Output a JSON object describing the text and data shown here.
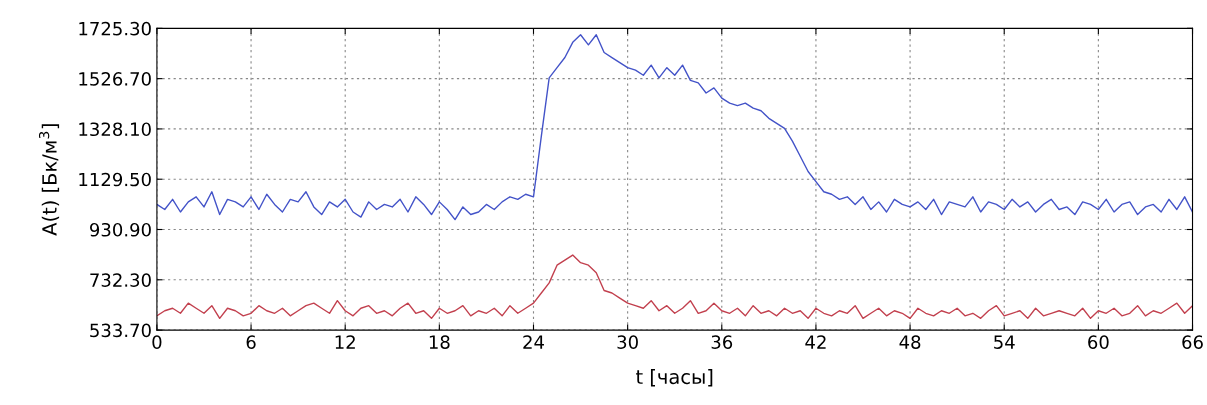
{
  "chart_data": {
    "type": "line",
    "xlabel": "t [часы]",
    "ylabel": "A(t) [Бк/м$^{3}$]",
    "x": [
      0,
      0.5,
      1,
      1.5,
      2,
      2.5,
      3,
      3.5,
      4,
      4.5,
      5,
      5.5,
      6,
      6.5,
      7,
      7.5,
      8,
      8.5,
      9,
      9.5,
      10,
      10.5,
      11,
      11.5,
      12,
      12.5,
      13,
      13.5,
      14,
      14.5,
      15,
      15.5,
      16,
      16.5,
      17,
      17.5,
      18,
      18.5,
      19,
      19.5,
      20,
      20.5,
      21,
      21.5,
      22,
      22.5,
      23,
      23.5,
      24,
      24.5,
      25,
      25.5,
      26,
      26.5,
      27,
      27.5,
      28,
      28.5,
      29,
      29.5,
      30,
      30.5,
      31,
      31.5,
      32,
      32.5,
      33,
      33.5,
      34,
      34.5,
      35,
      35.5,
      36,
      36.5,
      37,
      37.5,
      38,
      38.5,
      39,
      39.5,
      40,
      40.5,
      41,
      41.5,
      42,
      42.5,
      43,
      43.5,
      44,
      44.5,
      45,
      45.5,
      46,
      46.5,
      47,
      47.5,
      48,
      48.5,
      49,
      49.5,
      50,
      50.5,
      51,
      51.5,
      52,
      52.5,
      53,
      53.5,
      54,
      54.5,
      55,
      55.5,
      56,
      56.5,
      57,
      57.5,
      58,
      58.5,
      59,
      59.5,
      60,
      60.5,
      61,
      61.5,
      62,
      62.5,
      63,
      63.5,
      64,
      64.5,
      65,
      65.5,
      66
    ],
    "series": [
      {
        "color": "#4353c8",
        "values": [
          1030,
          1010,
          1050,
          1000,
          1040,
          1060,
          1020,
          1080,
          990,
          1050,
          1040,
          1020,
          1060,
          1010,
          1070,
          1030,
          1000,
          1050,
          1040,
          1080,
          1020,
          990,
          1040,
          1020,
          1050,
          1000,
          980,
          1040,
          1010,
          1030,
          1020,
          1050,
          1000,
          1060,
          1030,
          990,
          1040,
          1010,
          970,
          1020,
          990,
          1000,
          1030,
          1010,
          1040,
          1060,
          1050,
          1070,
          1060,
          1300,
          1530,
          1570,
          1610,
          1670,
          1700,
          1660,
          1700,
          1630,
          1610,
          1590,
          1570,
          1560,
          1540,
          1580,
          1530,
          1570,
          1540,
          1580,
          1520,
          1510,
          1470,
          1490,
          1450,
          1430,
          1420,
          1430,
          1410,
          1400,
          1370,
          1350,
          1330,
          1280,
          1220,
          1160,
          1120,
          1080,
          1070,
          1050,
          1060,
          1030,
          1060,
          1010,
          1040,
          1000,
          1050,
          1030,
          1020,
          1040,
          1010,
          1050,
          990,
          1040,
          1030,
          1020,
          1060,
          1000,
          1040,
          1030,
          1010,
          1050,
          1020,
          1040,
          1000,
          1030,
          1050,
          1010,
          1020,
          990,
          1040,
          1030,
          1010,
          1050,
          1000,
          1030,
          1040,
          990,
          1020,
          1030,
          1000,
          1050,
          1010,
          1060,
          1000
        ]
      },
      {
        "color": "#c2404e",
        "values": [
          590,
          610,
          620,
          600,
          640,
          620,
          600,
          630,
          580,
          620,
          610,
          590,
          600,
          630,
          610,
          600,
          620,
          590,
          610,
          630,
          640,
          620,
          600,
          650,
          610,
          590,
          620,
          630,
          600,
          610,
          590,
          620,
          640,
          600,
          610,
          580,
          620,
          600,
          610,
          630,
          590,
          610,
          600,
          620,
          590,
          630,
          600,
          620,
          640,
          680,
          720,
          790,
          810,
          830,
          800,
          790,
          760,
          690,
          680,
          660,
          640,
          630,
          620,
          650,
          610,
          630,
          600,
          620,
          650,
          600,
          610,
          640,
          610,
          600,
          620,
          590,
          630,
          600,
          610,
          590,
          620,
          600,
          610,
          580,
          620,
          600,
          590,
          610,
          600,
          630,
          580,
          600,
          620,
          590,
          610,
          600,
          580,
          620,
          600,
          590,
          610,
          600,
          620,
          590,
          600,
          580,
          610,
          630,
          590,
          600,
          610,
          580,
          620,
          590,
          600,
          610,
          600,
          590,
          620,
          580,
          610,
          600,
          620,
          590,
          600,
          630,
          590,
          610,
          600,
          620,
          640,
          600,
          630
        ]
      }
    ],
    "xlim": [
      0,
      66
    ],
    "xticks": [
      0,
      6,
      12,
      18,
      24,
      30,
      36,
      42,
      48,
      54,
      60,
      66
    ],
    "ylim": [
      533.7,
      1725.3
    ],
    "yticks": [
      {
        "value": 533.7,
        "label": "533.70"
      },
      {
        "value": 732.3,
        "label": "732.30"
      },
      {
        "value": 930.9,
        "label": "930.90"
      },
      {
        "value": 1129.5,
        "label": "1129.50"
      },
      {
        "value": 1328.1,
        "label": "1328.10"
      },
      {
        "value": 1526.7,
        "label": "1526.70"
      },
      {
        "value": 1725.3,
        "label": "1725.30"
      }
    ],
    "grid": true,
    "marker": "none",
    "line_style": "solid",
    "legend": false
  }
}
